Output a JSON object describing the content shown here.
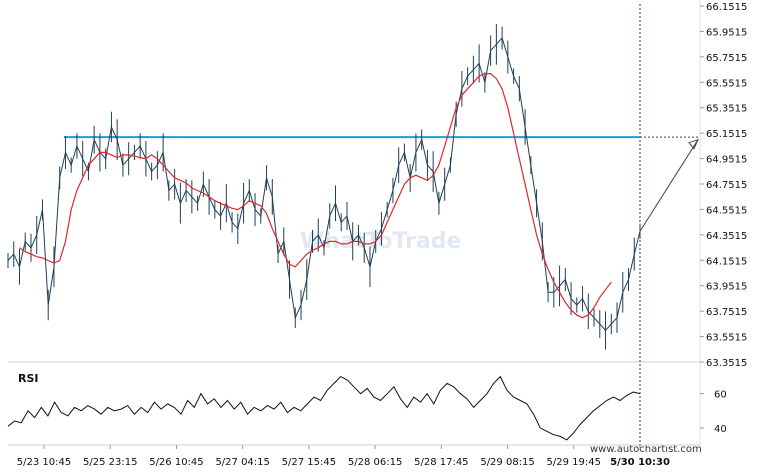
{
  "chart_data": [
    {
      "type": "line",
      "variant": "candlestick with moving average",
      "y_ticks": [
        "66.1515",
        "65.9515",
        "65.7515",
        "65.5515",
        "65.3515",
        "65.1515",
        "64.9515",
        "64.7515",
        "64.5515",
        "64.3515",
        "64.1515",
        "63.9515",
        "63.7515",
        "63.5515",
        "63.3515"
      ],
      "ylim": [
        63.3515,
        66.1515
      ],
      "x_tick_labels": [
        "5/23 10:45",
        "5/25 23:15",
        "5/26 10:45",
        "5/27 04:15",
        "5/27 15:45",
        "5/28 06:15",
        "5/28 17:45",
        "5/29 08:15",
        "5/29 19:45",
        "5/30 10:30"
      ],
      "highlight_x_label": "5/30 10:30",
      "resistance_level": 65.12,
      "projection": {
        "from": 64.38,
        "to": 65.1
      },
      "price_series": {
        "x": [
          0,
          3,
          6,
          9,
          12,
          15,
          18,
          21,
          24,
          27,
          30,
          33,
          36,
          39,
          42,
          45,
          48,
          51,
          54,
          57,
          60,
          63,
          66,
          69,
          72,
          75,
          78,
          81,
          84,
          87,
          90,
          93,
          96,
          99,
          102,
          105,
          108,
          111,
          114,
          117,
          120,
          123,
          126,
          129,
          132,
          135,
          138,
          141,
          144,
          147,
          150,
          153,
          156,
          159,
          162,
          165,
          168,
          171,
          174,
          177,
          180,
          183,
          186,
          189,
          192,
          195,
          198,
          201,
          204,
          207,
          210,
          213,
          216,
          219,
          222,
          225,
          228,
          231,
          234,
          237,
          240,
          243,
          246,
          249,
          252,
          255,
          258,
          261,
          264,
          267,
          270,
          273,
          276,
          279,
          282,
          285,
          288,
          291,
          294,
          297,
          300,
          303,
          306,
          309,
          312,
          315,
          318,
          321,
          324,
          327,
          330
        ],
        "values": [
          64.15,
          64.2,
          64.1,
          64.3,
          64.25,
          64.35,
          64.55,
          63.8,
          64.1,
          64.8,
          65.0,
          64.9,
          65.05,
          64.95,
          64.85,
          65.1,
          65.0,
          64.95,
          65.2,
          65.1,
          64.9,
          64.95,
          65.0,
          65.05,
          64.95,
          64.85,
          64.9,
          65.0,
          64.7,
          64.75,
          64.6,
          64.7,
          64.65,
          64.6,
          64.75,
          64.65,
          64.55,
          64.5,
          64.6,
          64.45,
          64.4,
          64.6,
          64.7,
          64.55,
          64.5,
          64.8,
          64.65,
          64.2,
          64.3,
          64.0,
          63.7,
          63.8,
          64.0,
          64.3,
          64.35,
          64.25,
          64.5,
          64.6,
          64.45,
          64.5,
          64.3,
          64.35,
          64.25,
          64.1,
          64.3,
          64.4,
          64.55,
          64.7,
          64.9,
          65.0,
          64.8,
          65.0,
          65.1,
          64.9,
          64.85,
          64.6,
          64.75,
          64.9,
          65.3,
          65.5,
          65.6,
          65.65,
          65.7,
          65.55,
          65.8,
          65.85,
          65.9,
          65.75,
          65.6,
          65.5,
          65.2,
          64.9,
          64.6,
          64.3,
          63.9,
          63.9,
          63.95,
          64.0,
          63.85,
          63.8,
          63.85,
          63.75,
          63.7,
          63.65,
          63.6,
          63.65,
          63.7,
          63.9,
          64.0,
          64.2,
          64.38
        ]
      },
      "moving_average": {
        "values": [
          64.25,
          64.22,
          64.2,
          64.18,
          64.17,
          64.15,
          64.13,
          64.15,
          64.3,
          64.55,
          64.7,
          64.8,
          64.9,
          64.95,
          65.0,
          65.0,
          64.98,
          64.96,
          64.98,
          64.98,
          64.97,
          64.96,
          64.95,
          64.98,
          64.95,
          64.9,
          64.85,
          64.8,
          64.78,
          64.76,
          64.72,
          64.7,
          64.68,
          64.65,
          64.62,
          64.6,
          64.58,
          64.56,
          64.55,
          64.58,
          64.62,
          64.6,
          64.58,
          64.52,
          64.4,
          64.3,
          64.2,
          64.12,
          64.1,
          64.15,
          64.2,
          64.23,
          64.25,
          64.28,
          64.3,
          64.3,
          64.28,
          64.28,
          64.3,
          64.3,
          64.28,
          64.28,
          64.3,
          64.35,
          64.45,
          64.55,
          64.65,
          64.75,
          64.8,
          64.82,
          64.8,
          64.78,
          64.82,
          64.9,
          65.05,
          65.2,
          65.35,
          65.45,
          65.5,
          65.55,
          65.6,
          65.62,
          65.62,
          65.58,
          65.5,
          65.35,
          65.15,
          64.95,
          64.75,
          64.55,
          64.35,
          64.2,
          64.08,
          63.98,
          63.9,
          63.82,
          63.76,
          63.72,
          63.7,
          63.72,
          63.78,
          63.86,
          63.92,
          63.98
        ]
      }
    },
    {
      "type": "line",
      "title": "RSI",
      "y_ticks": [
        "60",
        "40"
      ],
      "ylim": [
        30,
        75
      ],
      "rsi": {
        "values": [
          41,
          44,
          43,
          50,
          46,
          52,
          47,
          55,
          49,
          47,
          52,
          50,
          53,
          51,
          48,
          52,
          50,
          51,
          53,
          48,
          52,
          49,
          55,
          51,
          54,
          52,
          48,
          56,
          52,
          60,
          54,
          57,
          52,
          56,
          51,
          55,
          48,
          52,
          50,
          53,
          51,
          55,
          49,
          52,
          50,
          54,
          58,
          56,
          62,
          66,
          70,
          68,
          64,
          60,
          63,
          58,
          56,
          60,
          64,
          57,
          52,
          58,
          55,
          60,
          54,
          62,
          66,
          64,
          60,
          57,
          52,
          56,
          60,
          66,
          70,
          62,
          58,
          56,
          54,
          48,
          40,
          38,
          36,
          35,
          33,
          37,
          42,
          46,
          50,
          53,
          56,
          58,
          56,
          59,
          61,
          60
        ]
      }
    }
  ],
  "watermark": "WhatToTrade",
  "footer_url": "www.autochartist.com"
}
